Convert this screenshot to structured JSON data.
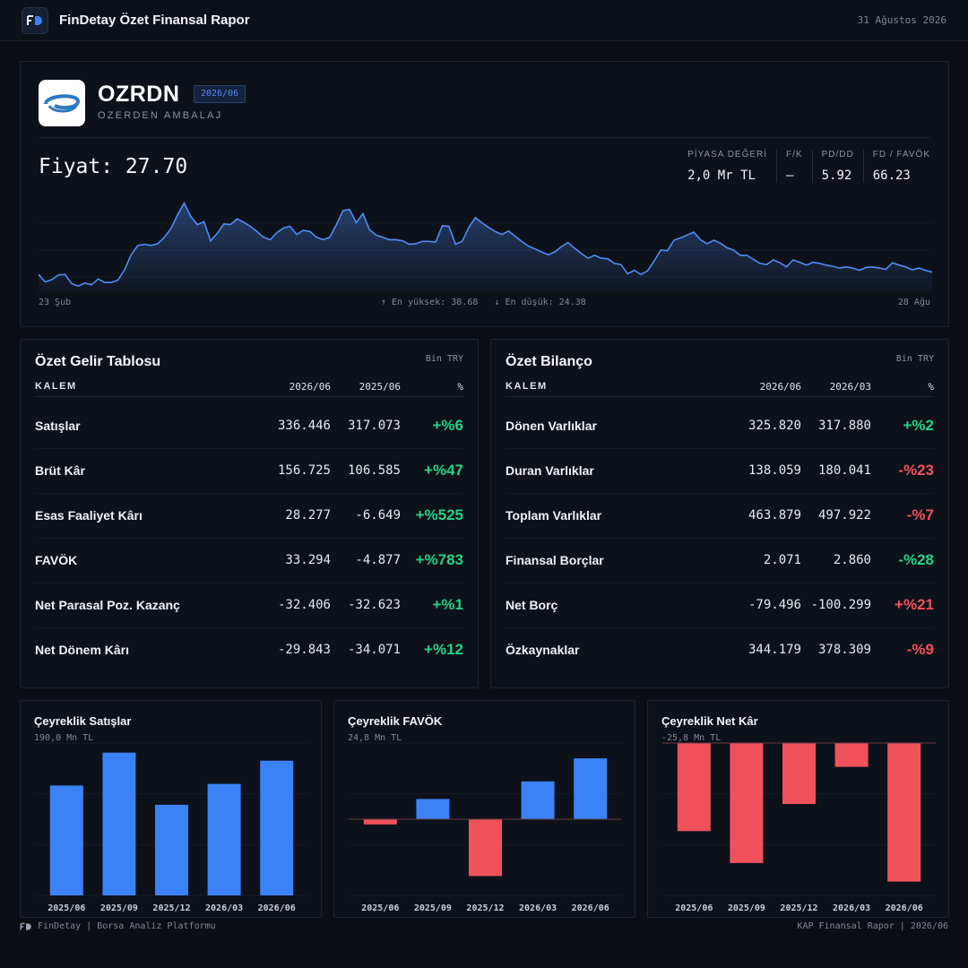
{
  "header": {
    "app_title": "FinDetay Özet Finansal Rapor",
    "date": "31 Ağustos 2026",
    "logo_text": "FD"
  },
  "company": {
    "ticker": "OZRDN",
    "period": "2026/06",
    "name": "OZERDEN AMBALAJ"
  },
  "price": {
    "label": "Fiyat: 27.70"
  },
  "metrics": [
    {
      "label": "PİYASA DEĞERİ",
      "value": "2,0 Mr TL"
    },
    {
      "label": "F/K",
      "value": "—"
    },
    {
      "label": "PD/DD",
      "value": "5.92"
    },
    {
      "label": "FD / FAVÖK",
      "value": "66.23"
    }
  ],
  "price_chart": {
    "start_label": "23 Şub",
    "end_label": "28 Ağu",
    "high_label": "↑ En yüksek: 38.68",
    "low_label": "↓ En düşük: 24.38",
    "color": "#4f8cf5",
    "high": 38.68,
    "low": 24.38,
    "values": [
      26.4,
      25.1,
      25.5,
      26.3,
      26.4,
      24.8,
      24.4,
      24.9,
      24.6,
      25.6,
      25.0,
      25.0,
      25.4,
      27.2,
      29.8,
      31.4,
      31.6,
      31.4,
      31.7,
      32.8,
      34.3,
      36.7,
      38.7,
      36.4,
      35.0,
      35.5,
      32.2,
      33.5,
      35.1,
      35.0,
      36.0,
      35.4,
      34.7,
      33.8,
      32.8,
      32.4,
      33.6,
      34.4,
      34.7,
      33.3,
      34.0,
      33.8,
      32.8,
      32.4,
      32.8,
      35.0,
      37.4,
      37.6,
      35.3,
      36.9,
      34.1,
      33.2,
      32.8,
      32.4,
      32.4,
      32.2,
      31.6,
      31.7,
      32.1,
      32.1,
      32.0,
      34.8,
      34.7,
      31.6,
      32.1,
      34.5,
      36.2,
      35.3,
      34.5,
      33.8,
      33.3,
      33.9,
      33.0,
      32.1,
      31.3,
      30.8,
      30.3,
      29.8,
      30.3,
      31.2,
      31.9,
      30.9,
      30.0,
      29.2,
      29.7,
      29.2,
      29.1,
      28.3,
      28.1,
      26.5,
      27.1,
      26.4,
      27.0,
      28.7,
      30.6,
      30.5,
      32.3,
      32.7,
      33.2,
      33.7,
      32.4,
      31.7,
      32.3,
      31.8,
      31.0,
      30.6,
      29.7,
      29.7,
      29.0,
      28.3,
      28.1,
      28.9,
      28.4,
      27.7,
      28.9,
      28.5,
      28.0,
      28.5,
      28.3,
      28.0,
      27.8,
      27.5,
      27.7,
      27.5,
      27.1,
      27.6,
      27.7,
      27.5,
      27.3,
      28.4,
      28.0,
      27.7,
      27.2,
      27.5,
      27.1,
      26.8
    ]
  },
  "income": {
    "title": "Özet Gelir Tablosu",
    "unit": "Bin TRY",
    "headers": [
      "KALEM",
      "2026/06",
      "2025/06",
      "%"
    ],
    "rows": [
      {
        "name": "Satışlar",
        "current": "336.446",
        "previous": "317.073",
        "change": "+%6",
        "positive": true
      },
      {
        "name": "Brüt Kâr",
        "current": "156.725",
        "previous": "106.585",
        "change": "+%47",
        "positive": true
      },
      {
        "name": "Esas Faaliyet Kârı",
        "current": "28.277",
        "previous": "-6.649",
        "change": "+%525",
        "positive": true
      },
      {
        "name": "FAVÖK",
        "current": "33.294",
        "previous": "-4.877",
        "change": "+%783",
        "positive": true
      },
      {
        "name": "Net Parasal Poz. Kazanç",
        "current": "-32.406",
        "previous": "-32.623",
        "change": "+%1",
        "positive": true
      },
      {
        "name": "Net Dönem Kârı",
        "current": "-29.843",
        "previous": "-34.071",
        "change": "+%12",
        "positive": true
      }
    ]
  },
  "balance": {
    "title": "Özet Bilanço",
    "unit": "Bin TRY",
    "headers": [
      "KALEM",
      "2026/06",
      "2026/03",
      "%"
    ],
    "rows": [
      {
        "name": "Dönen Varlıklar",
        "current": "325.820",
        "previous": "317.880",
        "change": "+%2",
        "positive": true
      },
      {
        "name": "Duran Varlıklar",
        "current": "138.059",
        "previous": "180.041",
        "change": "-%23",
        "positive": false
      },
      {
        "name": "Toplam Varlıklar",
        "current": "463.879",
        "previous": "497.922",
        "change": "-%7",
        "positive": false
      },
      {
        "name": "Finansal Borçlar",
        "current": "2.071",
        "previous": "2.860",
        "change": "-%28",
        "positive": true
      },
      {
        "name": "Net Borç",
        "current": "-79.496",
        "previous": "-100.299",
        "change": "+%21",
        "positive": false
      },
      {
        "name": "Özkaynaklar",
        "current": "344.179",
        "previous": "378.309",
        "change": "-%9",
        "positive": false
      }
    ]
  },
  "chart_data": [
    {
      "type": "bar",
      "title": "Çeyreklik Satışlar",
      "subtitle": "190,0 Mn TL",
      "categories": [
        "2025/06",
        "2025/09",
        "2025/12",
        "2026/03",
        "2026/06"
      ],
      "values": [
        137,
        178,
        113,
        139,
        168
      ],
      "ylim": [
        0,
        190
      ],
      "color": "#3b82f6"
    },
    {
      "type": "bar",
      "title": "Çeyreklik FAVÖK",
      "subtitle": "24,8 Mn TL",
      "categories": [
        "2025/06",
        "2025/09",
        "2025/12",
        "2026/03",
        "2026/06"
      ],
      "values": [
        -1.7,
        6.6,
        -18.5,
        12.3,
        19.8
      ],
      "ylim": [
        -24.8,
        24.8
      ],
      "pos_color": "#3b82f6",
      "neg_color": "#f0525c"
    },
    {
      "type": "bar",
      "title": "Çeyreklik Net Kâr",
      "subtitle": "-25,8 Mn TL",
      "categories": [
        "2025/06",
        "2025/09",
        "2025/12",
        "2026/03",
        "2026/06"
      ],
      "values": [
        -18.5,
        -25.2,
        -12.8,
        -5.0,
        -29.1
      ],
      "ylim": [
        -32,
        0
      ],
      "pos_color": "#3b82f6",
      "neg_color": "#f0525c"
    }
  ],
  "footer": {
    "left": "FinDetay | Borsa Analiz Platformu",
    "right": "KAP Finansal Rapor | 2026/06"
  }
}
